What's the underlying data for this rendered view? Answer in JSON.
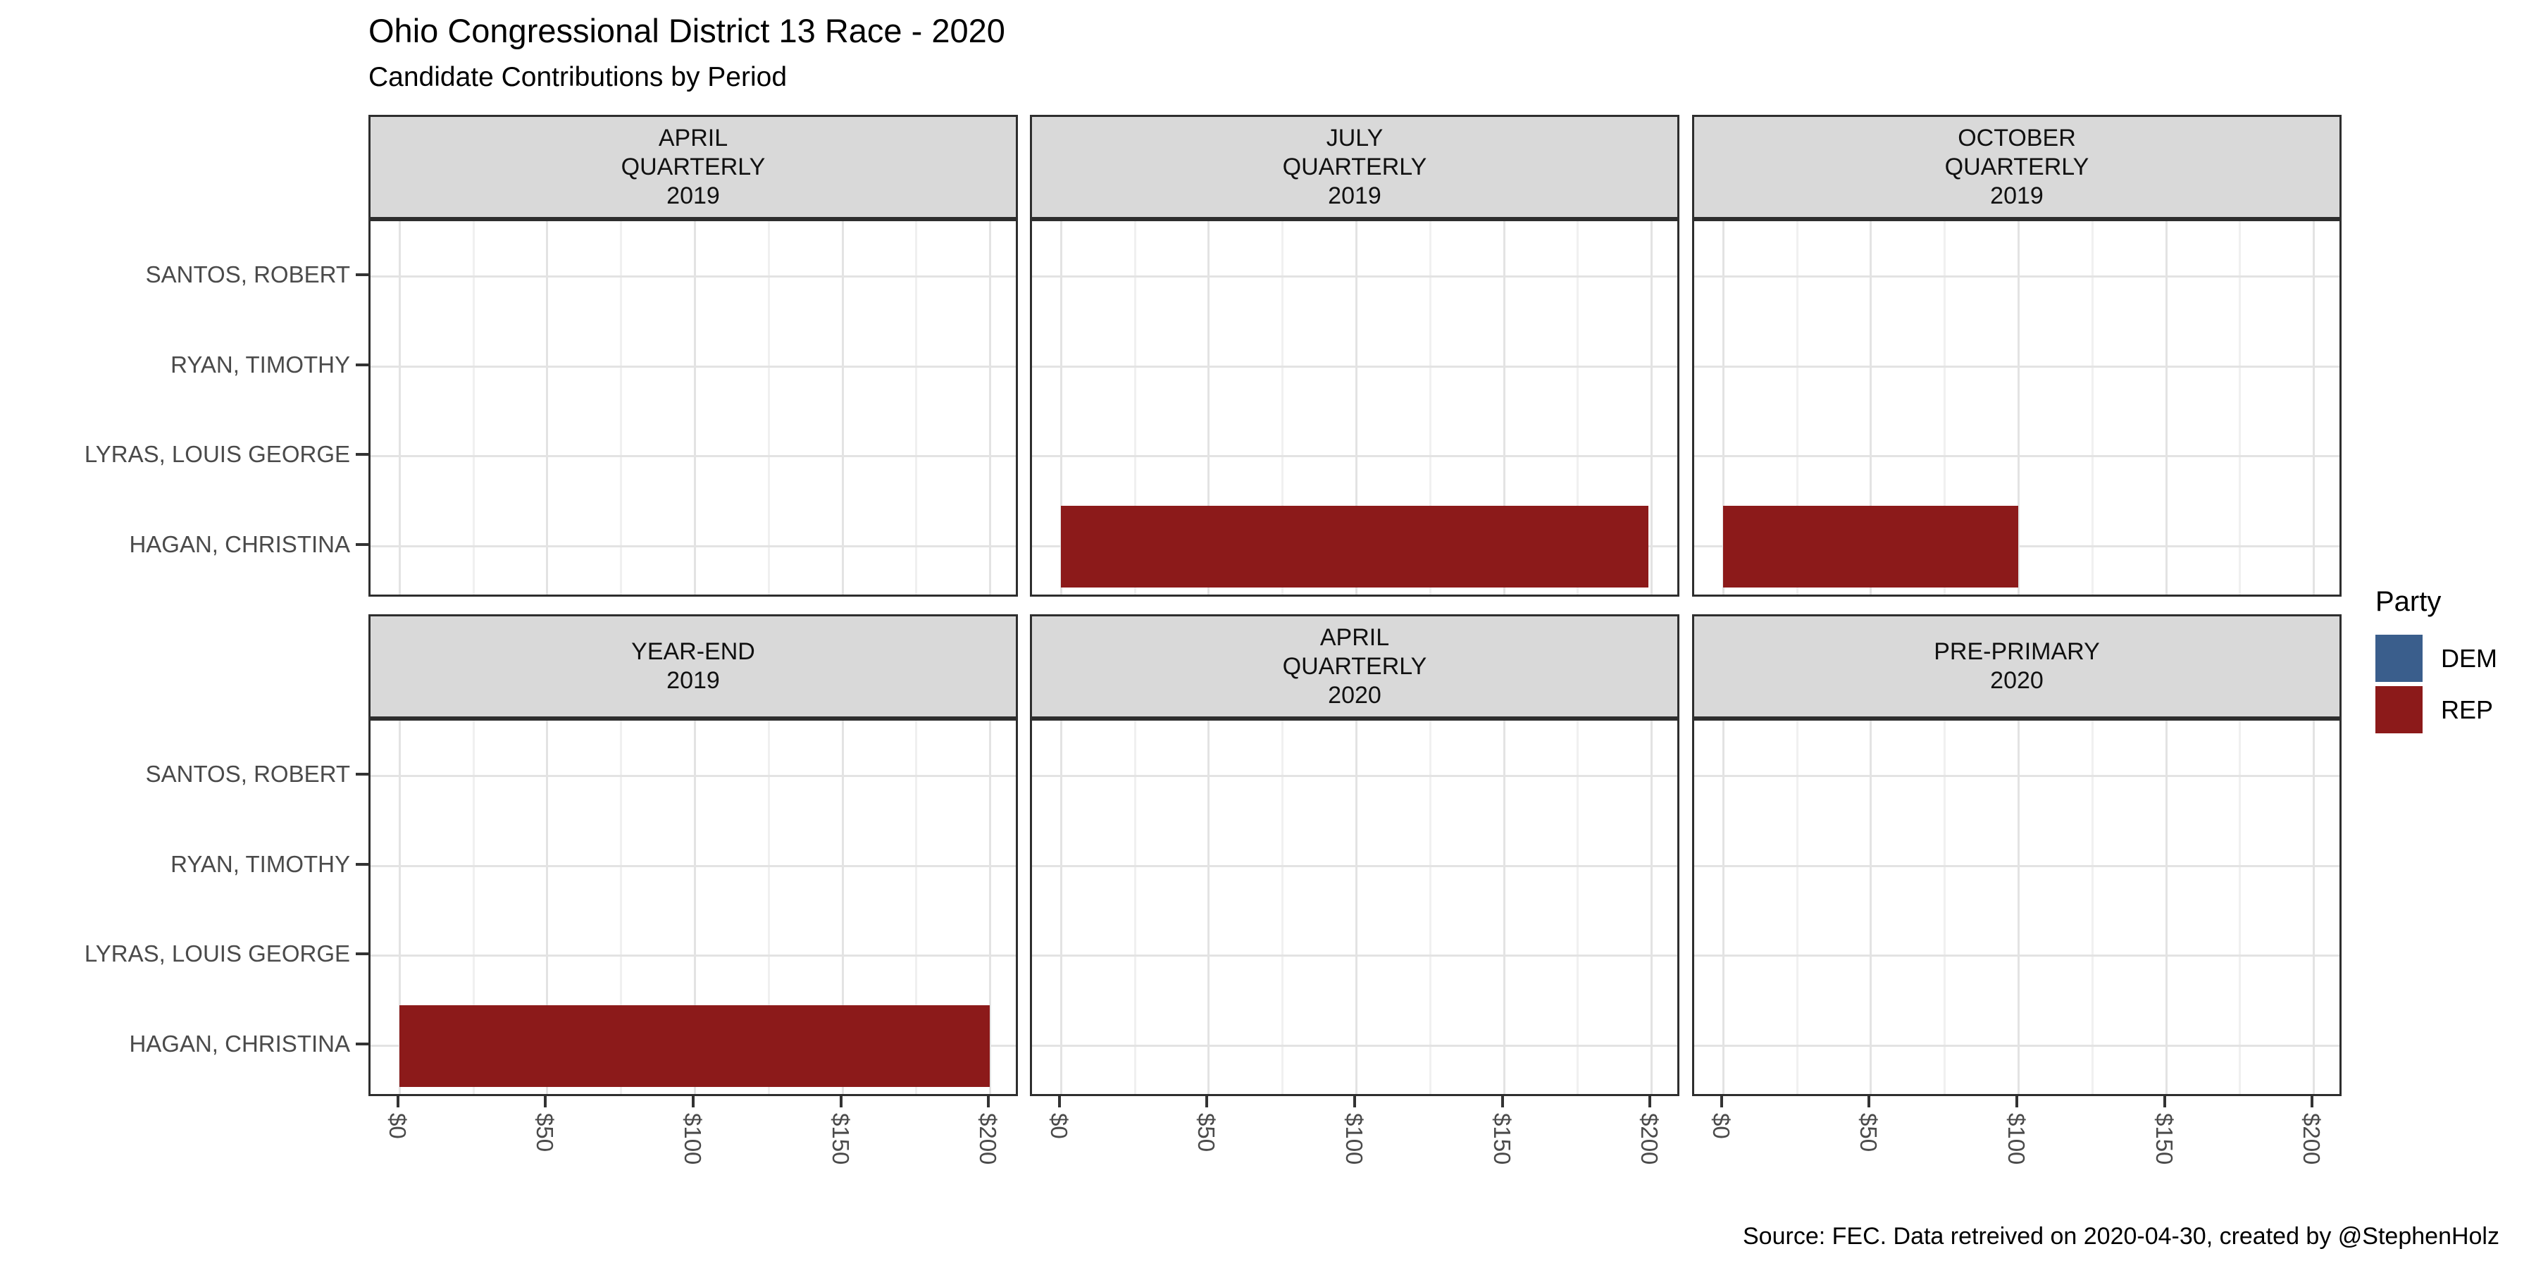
{
  "title": "Ohio Congressional District 13 Race - 2020",
  "subtitle": "Candidate Contributions by Period",
  "caption": "Source: FEC. Data retreived on 2020-04-30, created by @StephenHolz",
  "legend": {
    "title": "Party",
    "entries": [
      {
        "label": "DEM",
        "color": "#3a5e8c"
      },
      {
        "label": "REP",
        "color": "#8c1a1a"
      }
    ]
  },
  "chart_data": {
    "type": "bar",
    "orientation": "horizontal",
    "title": "Ohio Congressional District 13 Race - 2020",
    "subtitle": "Candidate Contributions by Period",
    "categories": [
      "SANTOS, ROBERT",
      "RYAN, TIMOTHY",
      "LYRAS, LOUIS GEORGE",
      "HAGAN, CHRISTINA"
    ],
    "x_ticks": [
      {
        "label": "$0",
        "value": 0
      },
      {
        "label": "$50",
        "value": 50
      },
      {
        "label": "$100",
        "value": 100
      },
      {
        "label": "$150",
        "value": 150
      },
      {
        "label": "$200",
        "value": 200
      }
    ],
    "minor_x": [
      25,
      75,
      125,
      175
    ],
    "xlim": [
      -10,
      210
    ],
    "grid": "major_and_minor_x_major_y",
    "legend_position": "right",
    "facets": [
      {
        "period": "APRIL QUARTERLY 2019",
        "label_lines": [
          "APRIL",
          "QUARTERLY",
          "2019"
        ],
        "row": 0,
        "col": 0,
        "bars": []
      },
      {
        "period": "JULY QUARTERLY 2019",
        "label_lines": [
          "JULY",
          "QUARTERLY",
          "2019"
        ],
        "row": 0,
        "col": 1,
        "bars": [
          {
            "candidate": "HAGAN, CHRISTINA",
            "party": "REP",
            "value": 199
          }
        ]
      },
      {
        "period": "OCTOBER QUARTERLY 2019",
        "label_lines": [
          "OCTOBER",
          "QUARTERLY",
          "2019"
        ],
        "row": 0,
        "col": 2,
        "bars": [
          {
            "candidate": "HAGAN, CHRISTINA",
            "party": "REP",
            "value": 100
          }
        ]
      },
      {
        "period": "YEAR-END 2019",
        "label_lines": [
          "YEAR-END",
          "2019"
        ],
        "row": 1,
        "col": 0,
        "bars": [
          {
            "candidate": "HAGAN, CHRISTINA",
            "party": "REP",
            "value": 200
          }
        ]
      },
      {
        "period": "APRIL QUARTERLY 2020",
        "label_lines": [
          "APRIL",
          "QUARTERLY",
          "2020"
        ],
        "row": 1,
        "col": 1,
        "bars": []
      },
      {
        "period": "PRE-PRIMARY 2020",
        "label_lines": [
          "PRE-PRIMARY",
          "2020"
        ],
        "row": 1,
        "col": 2,
        "bars": []
      }
    ]
  }
}
